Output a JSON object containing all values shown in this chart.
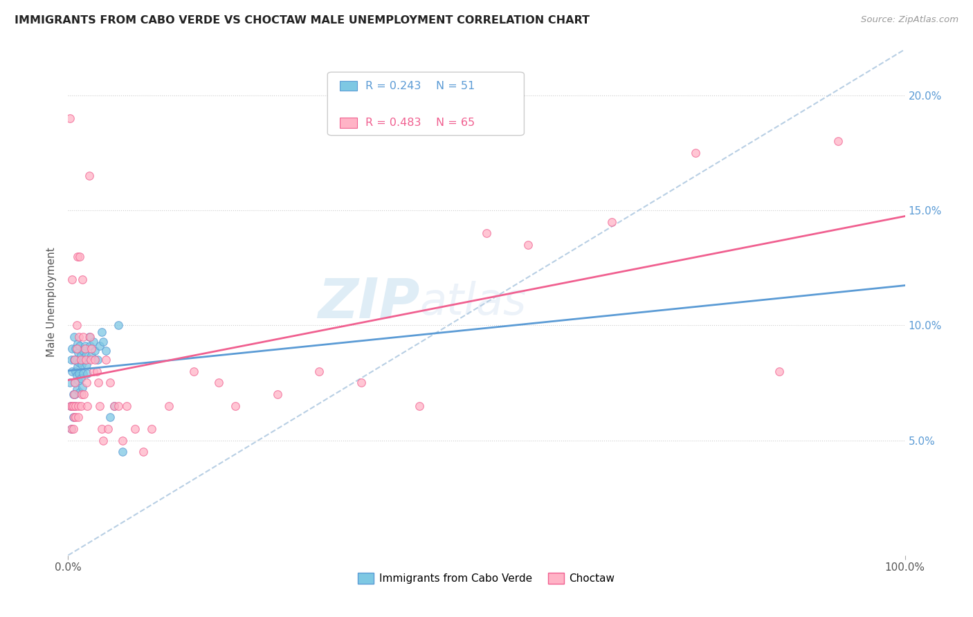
{
  "title": "IMMIGRANTS FROM CABO VERDE VS CHOCTAW MALE UNEMPLOYMENT CORRELATION CHART",
  "source": "Source: ZipAtlas.com",
  "ylabel": "Male Unemployment",
  "y_ticks": [
    0.05,
    0.1,
    0.15,
    0.2
  ],
  "y_tick_labels": [
    "5.0%",
    "10.0%",
    "15.0%",
    "20.0%"
  ],
  "xlim": [
    0,
    1.0
  ],
  "ylim": [
    0,
    0.22
  ],
  "cabo_verde_color": "#7ec8e3",
  "choctaw_color": "#ffb3c6",
  "trendline1_color": "#5b9bd5",
  "trendline2_color": "#f06090",
  "diagonal_color": "#b8cfe4",
  "watermark_zip": "ZIP",
  "watermark_atlas": "atlas",
  "cabo_verde_x": [
    0.002,
    0.003,
    0.004,
    0.004,
    0.005,
    0.005,
    0.006,
    0.006,
    0.007,
    0.007,
    0.008,
    0.008,
    0.008,
    0.009,
    0.009,
    0.01,
    0.01,
    0.01,
    0.011,
    0.011,
    0.012,
    0.012,
    0.013,
    0.013,
    0.014,
    0.014,
    0.015,
    0.015,
    0.016,
    0.017,
    0.018,
    0.018,
    0.019,
    0.02,
    0.021,
    0.022,
    0.023,
    0.025,
    0.026,
    0.028,
    0.03,
    0.032,
    0.035,
    0.038,
    0.04,
    0.042,
    0.045,
    0.05,
    0.055,
    0.06,
    0.065
  ],
  "cabo_verde_y": [
    0.075,
    0.065,
    0.055,
    0.085,
    0.08,
    0.09,
    0.07,
    0.06,
    0.095,
    0.085,
    0.075,
    0.07,
    0.065,
    0.09,
    0.08,
    0.085,
    0.078,
    0.072,
    0.092,
    0.082,
    0.088,
    0.076,
    0.084,
    0.079,
    0.091,
    0.071,
    0.087,
    0.077,
    0.083,
    0.073,
    0.089,
    0.079,
    0.085,
    0.091,
    0.087,
    0.083,
    0.079,
    0.095,
    0.091,
    0.087,
    0.093,
    0.089,
    0.085,
    0.091,
    0.097,
    0.093,
    0.089,
    0.06,
    0.065,
    0.1,
    0.045
  ],
  "choctaw_x": [
    0.002,
    0.003,
    0.004,
    0.005,
    0.005,
    0.006,
    0.006,
    0.007,
    0.007,
    0.008,
    0.008,
    0.009,
    0.009,
    0.01,
    0.01,
    0.011,
    0.012,
    0.012,
    0.013,
    0.014,
    0.015,
    0.015,
    0.016,
    0.017,
    0.018,
    0.019,
    0.02,
    0.021,
    0.022,
    0.023,
    0.025,
    0.026,
    0.027,
    0.028,
    0.03,
    0.032,
    0.034,
    0.036,
    0.038,
    0.04,
    0.042,
    0.045,
    0.048,
    0.05,
    0.055,
    0.06,
    0.065,
    0.07,
    0.08,
    0.09,
    0.1,
    0.12,
    0.15,
    0.18,
    0.2,
    0.25,
    0.3,
    0.35,
    0.42,
    0.5,
    0.55,
    0.65,
    0.75,
    0.85,
    0.92
  ],
  "choctaw_y": [
    0.19,
    0.065,
    0.055,
    0.12,
    0.065,
    0.065,
    0.055,
    0.07,
    0.06,
    0.085,
    0.075,
    0.065,
    0.06,
    0.1,
    0.09,
    0.13,
    0.065,
    0.06,
    0.095,
    0.13,
    0.085,
    0.065,
    0.07,
    0.12,
    0.095,
    0.07,
    0.09,
    0.085,
    0.075,
    0.065,
    0.165,
    0.095,
    0.085,
    0.09,
    0.08,
    0.085,
    0.08,
    0.075,
    0.065,
    0.055,
    0.05,
    0.085,
    0.055,
    0.075,
    0.065,
    0.065,
    0.05,
    0.065,
    0.055,
    0.045,
    0.055,
    0.065,
    0.08,
    0.075,
    0.065,
    0.07,
    0.08,
    0.075,
    0.065,
    0.14,
    0.135,
    0.145,
    0.175,
    0.08,
    0.18
  ],
  "legend_r1": "R = 0.243",
  "legend_n1": "N = 51",
  "legend_r2": "R = 0.483",
  "legend_n2": "N = 65",
  "legend_label1": "Immigrants from Cabo Verde",
  "legend_label2": "Choctaw"
}
